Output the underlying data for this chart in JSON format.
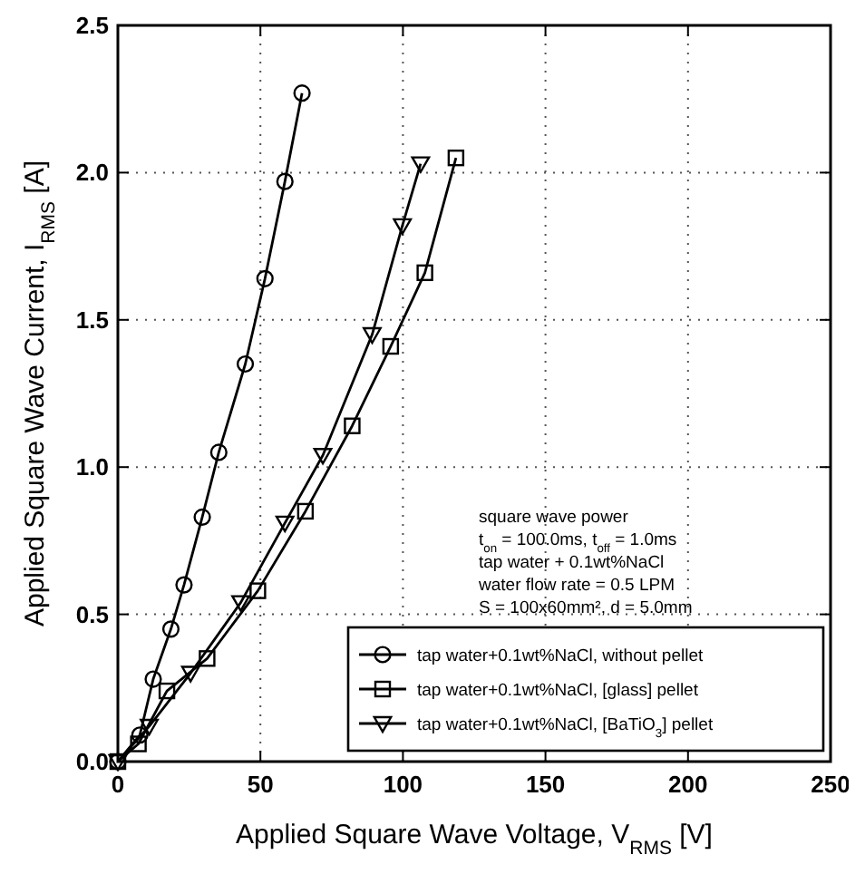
{
  "chart_data": {
    "type": "line",
    "xlabel": "Applied Square Wave Voltage, V$_{RMS}$ [V]",
    "ylabel": "Applied Square Wave Current, I$_{RMS}$ [A]",
    "xlim": [
      0,
      250
    ],
    "ylim": [
      0,
      2.5
    ],
    "xticks": [
      0,
      50,
      100,
      150,
      200,
      250
    ],
    "yticks": [
      {
        "value": 0,
        "label": "0.0"
      },
      {
        "value": 0.5,
        "label": "0.5"
      },
      {
        "value": 1,
        "label": "1.0"
      },
      {
        "value": 1.5,
        "label": "1.5"
      },
      {
        "value": 2,
        "label": "2.0"
      },
      {
        "value": 2.5,
        "label": "2.5"
      }
    ],
    "grid": true,
    "legend": "bottom right",
    "line_style": "solid",
    "annotations": [
      "square wave power",
      "t$_{on}$ = 100.0ms, t$_{off}$ = 1.0ms",
      "tap water + 0.1wt%NaCl",
      "water flow rate = 0.5 LPM",
      "S = 100x60mm², d = 5.0mm"
    ],
    "series": [
      {
        "name": "tap water+0.1wt%NaCl, without pellet",
        "color": "#000000",
        "marker": "circle",
        "x": [
          0,
          7.7,
          12.4,
          18.6,
          23.2,
          29.6,
          35.4,
          44.7,
          51.6,
          58.6,
          64.6
        ],
        "values": [
          0,
          0.09,
          0.28,
          0.45,
          0.6,
          0.83,
          1.05,
          1.35,
          1.64,
          1.97,
          2.27
        ]
      },
      {
        "name": "tap water+0.1wt%NaCl, [glass] pellet",
        "color": "#000000",
        "marker": "square",
        "x": [
          0,
          7.2,
          17.2,
          31.3,
          49.1,
          65.8,
          82.2,
          95.7,
          107.7,
          118.6
        ],
        "values": [
          0,
          0.06,
          0.24,
          0.35,
          0.58,
          0.85,
          1.14,
          1.41,
          1.66,
          2.05
        ]
      },
      {
        "name": "tap water+0.1wt%NaCl, [BaTiO$_{3}$] pellet",
        "color": "#000000",
        "marker": "triangle",
        "x": [
          0,
          11,
          25.5,
          43.1,
          58.6,
          71.9,
          89.2,
          99.8,
          106.2
        ],
        "values": [
          0,
          0.12,
          0.3,
          0.54,
          0.81,
          1.04,
          1.45,
          1.82,
          2.03
        ]
      }
    ]
  }
}
